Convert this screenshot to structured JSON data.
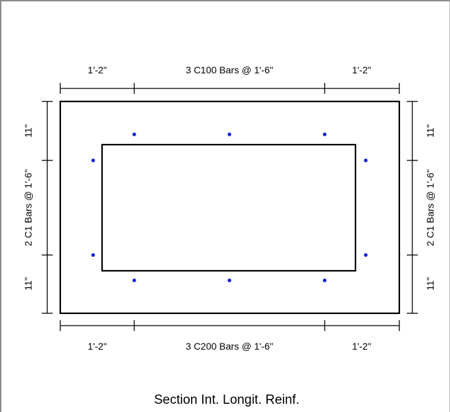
{
  "top_dims": {
    "left": "1'-2\"",
    "middle": "3 C100 Bars @ 1'-6\"",
    "right": "1'-2\""
  },
  "bottom_dims": {
    "left": "1'-2\"",
    "middle": "3 C200 Bars @ 1'-6\"",
    "right": "1'-2\""
  },
  "left_dims": {
    "top": "11\"",
    "middle": "2 C1 Bars @ 1'-6\"",
    "bottom": "11\""
  },
  "right_dims": {
    "top": "11\"",
    "middle": "2 C1 Bars @ 1'-6\"",
    "bottom": "11\""
  },
  "caption": "Section Int. Longit. Reinf.",
  "colors": {
    "rebar": "#0a1adc",
    "outline": "#000000"
  }
}
